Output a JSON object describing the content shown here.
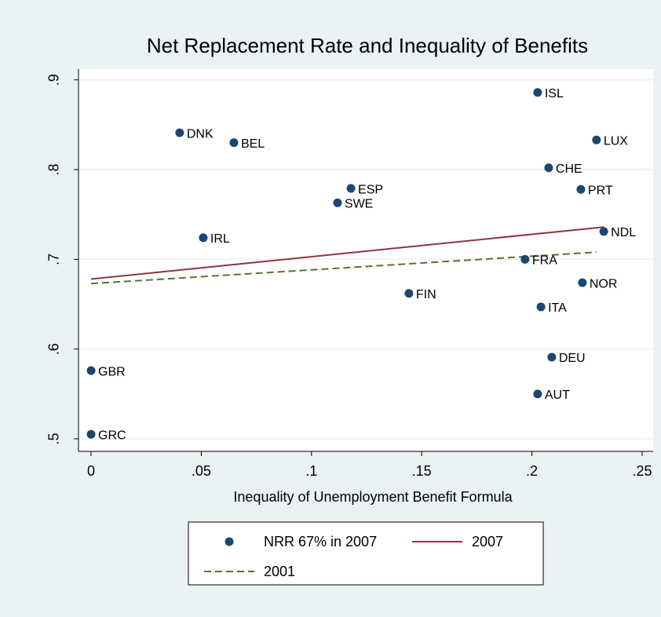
{
  "chart_data": {
    "type": "scatter",
    "title": "Net Replacement Rate and Inequality of Benefits",
    "x_label": "Inequality of Unemployment Benefit Formula",
    "xlim": [
      -0.0057,
      0.255
    ],
    "ylim": [
      0.486,
      0.912
    ],
    "xticks": [
      0,
      {
        "value": 0.05,
        "label": ".05"
      },
      {
        "value": 0.1,
        "label": ".1"
      },
      {
        "value": 0.15,
        "label": ".15"
      },
      {
        "value": 0.2,
        "label": ".2"
      },
      {
        "value": 0.25,
        "label": ".25"
      }
    ],
    "yticks": [
      {
        "value": 0.5,
        "label": ".5"
      },
      {
        "value": 0.6,
        "label": ".6"
      },
      {
        "value": 0.7,
        "label": ".7"
      },
      {
        "value": 0.8,
        "label": ".8"
      },
      {
        "value": 0.9,
        "label": ".9"
      }
    ],
    "grid": true,
    "legend": "bottom",
    "series": [
      {
        "name": "NRR 67% in 2007",
        "kind": "scatter",
        "color": "#1a476f",
        "labels": [
          "DNK",
          "BEL",
          "ESP",
          "SWE",
          "IRL",
          "FIN",
          "ISL",
          "LUX",
          "CHE",
          "PRT",
          "NDL",
          "FRA",
          "NOR",
          "ITA",
          "DEU",
          "AUT",
          "GBR",
          "GRC"
        ],
        "x": [
          0.0402,
          0.0648,
          0.1179,
          0.1118,
          0.0509,
          0.1442,
          0.2026,
          0.2293,
          0.2076,
          0.2222,
          0.2326,
          0.1969,
          0.2229,
          0.2041,
          0.209,
          0.2026,
          0,
          0
        ],
        "values": [
          0.841,
          0.83,
          0.779,
          0.763,
          0.724,
          0.662,
          0.886,
          0.833,
          0.802,
          0.778,
          0.731,
          0.7,
          0.674,
          0.647,
          0.591,
          0.55,
          0.576,
          0.505
        ]
      },
      {
        "name": "2007",
        "kind": "line",
        "color": "#90353b",
        "dash": false,
        "x": [
          0,
          0.2326
        ],
        "values": [
          0.678,
          0.736
        ]
      },
      {
        "name": "2001",
        "kind": "line",
        "color": "#55752f",
        "dash": true,
        "x": [
          0,
          0.2293
        ],
        "values": [
          0.673,
          0.708
        ]
      }
    ]
  }
}
